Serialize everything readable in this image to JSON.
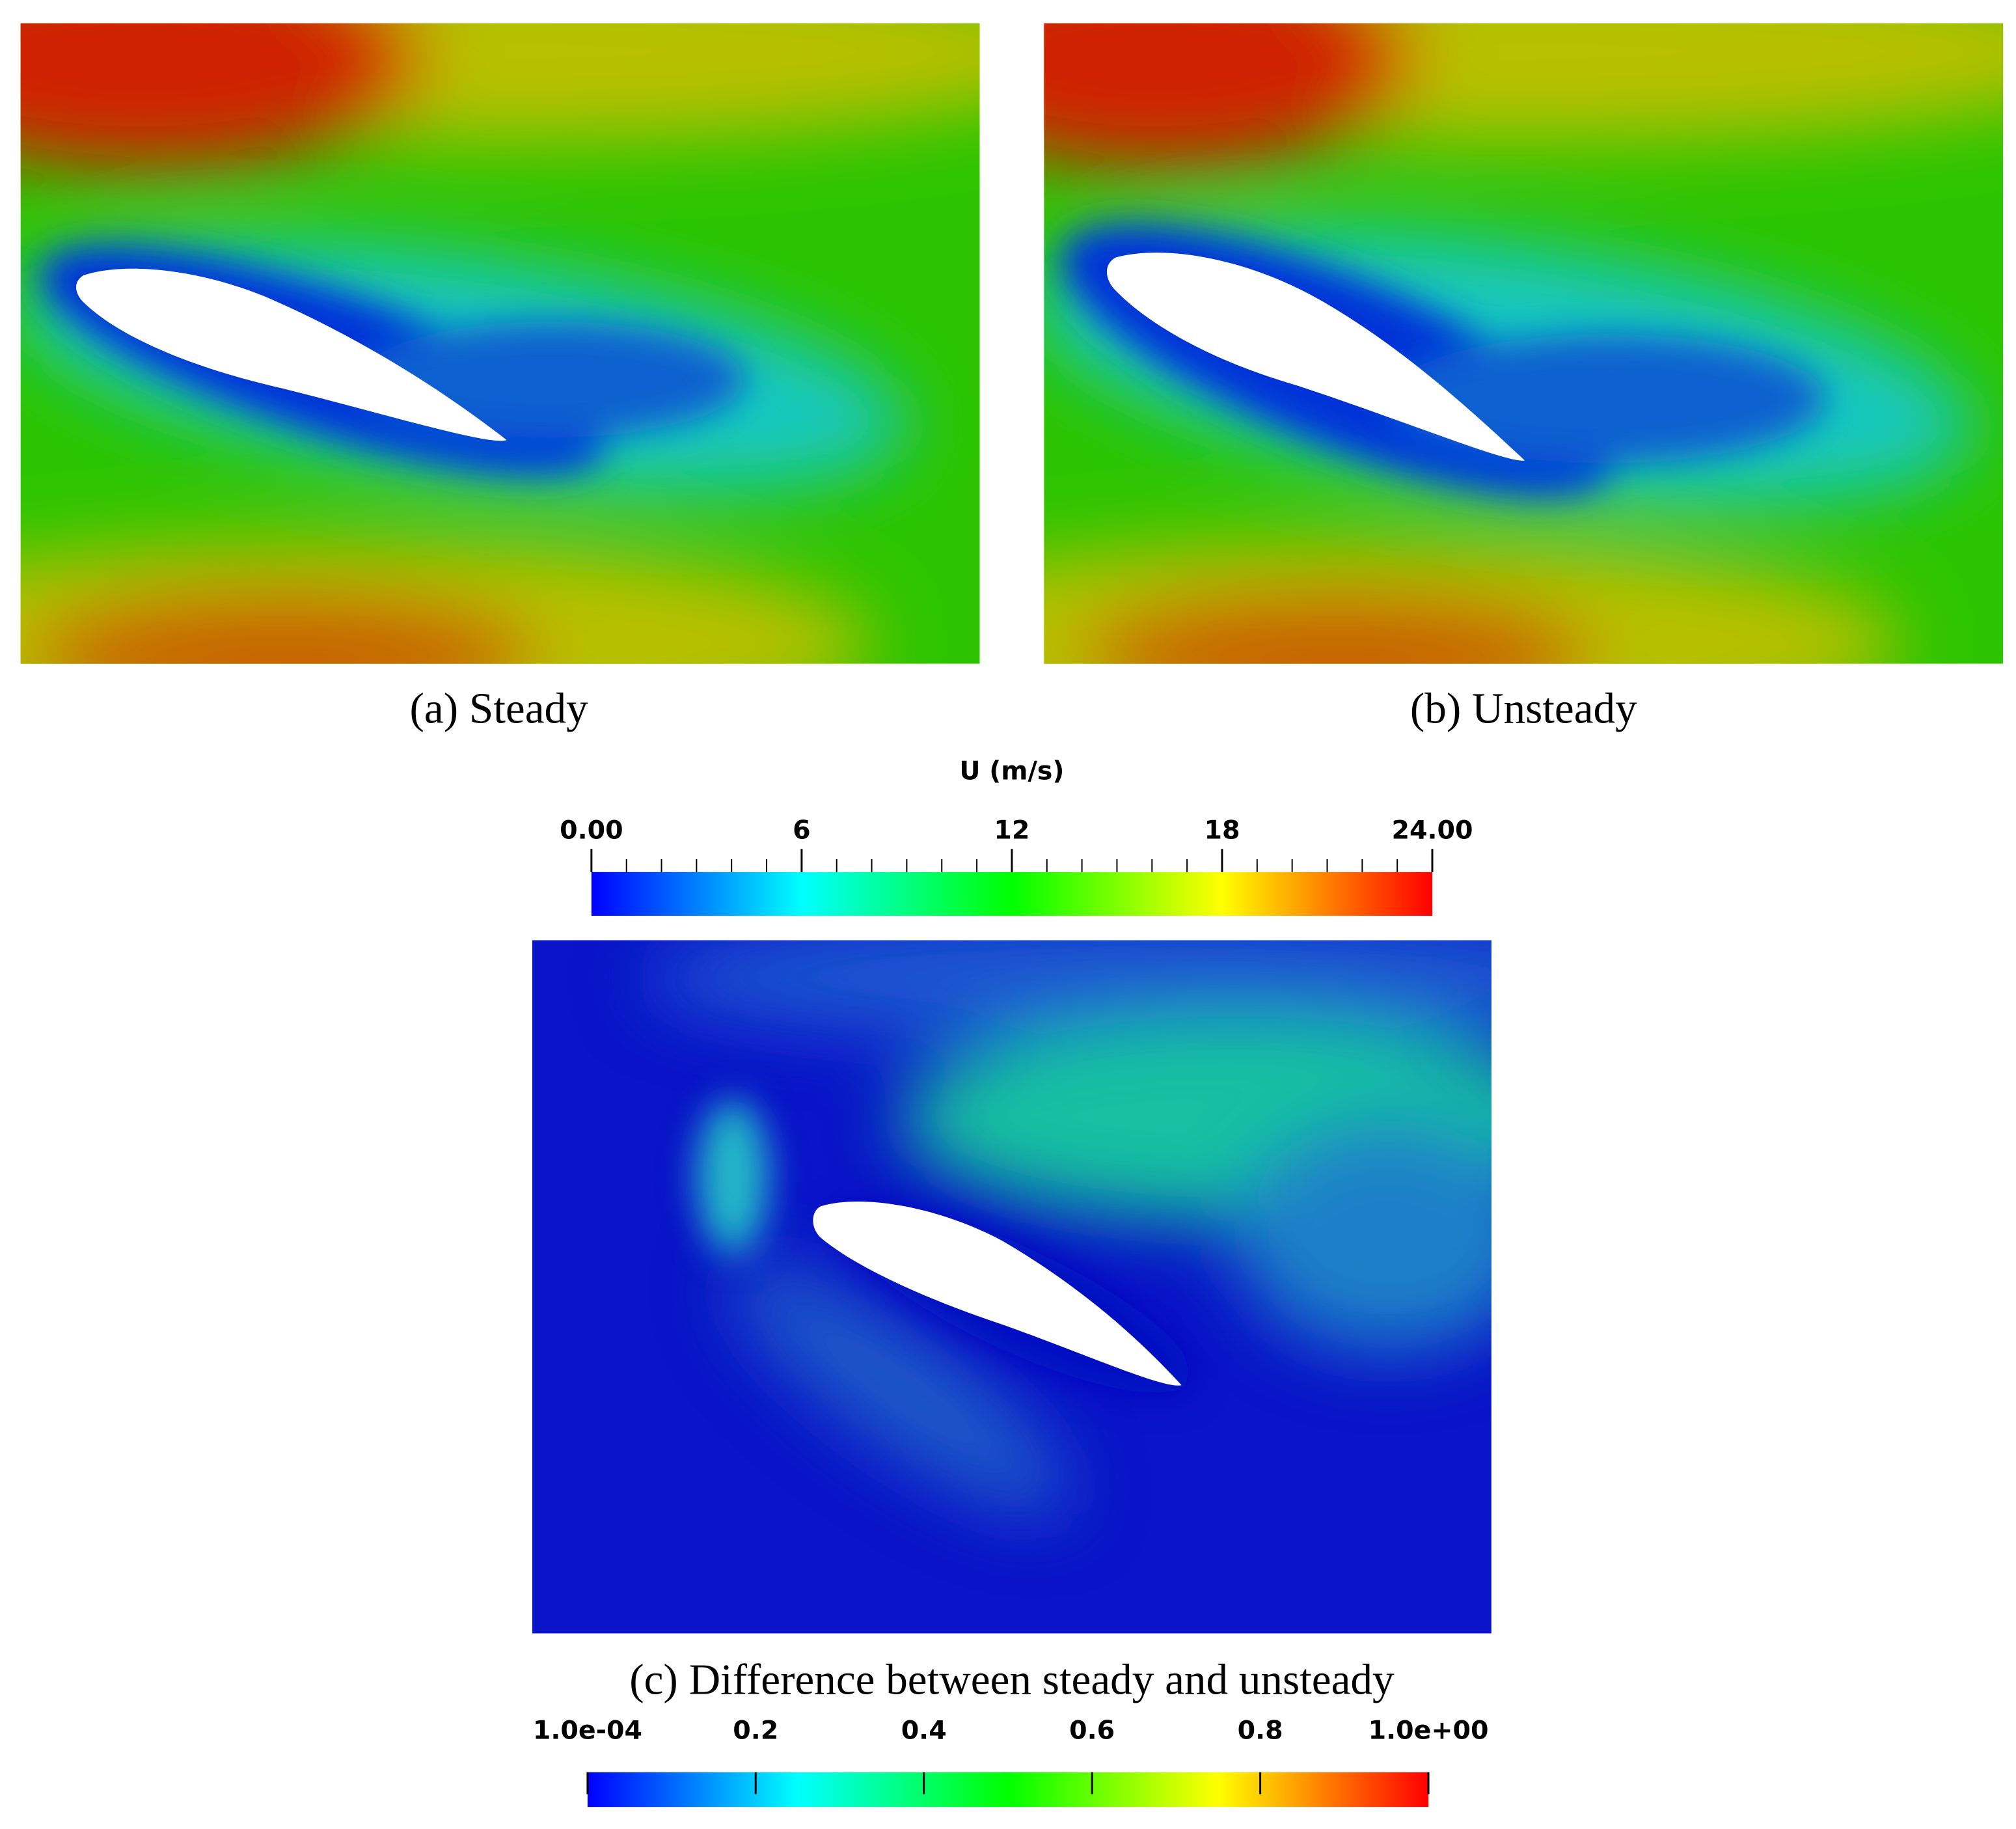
{
  "panels": [
    {
      "label": "(a)",
      "caption": "Steady"
    },
    {
      "label": "(b)",
      "caption": "Unsteady"
    },
    {
      "label": "(c)",
      "caption": "Difference between steady and unsteady"
    }
  ],
  "colorbars": [
    {
      "title": "U (m/s)",
      "lim": [
        0,
        24
      ],
      "ticks": [
        {
          "value": 0,
          "label": "0.00"
        },
        6,
        12,
        18,
        {
          "value": 24,
          "label": "24.00"
        }
      ]
    },
    {
      "lim": [
        0.0001,
        1
      ],
      "ticks": [
        {
          "value": 0.0001,
          "label": "1.0e-04"
        },
        0.2,
        0.4,
        0.6,
        0.8,
        {
          "value": 1,
          "label": "1.0e+00"
        }
      ]
    }
  ]
}
